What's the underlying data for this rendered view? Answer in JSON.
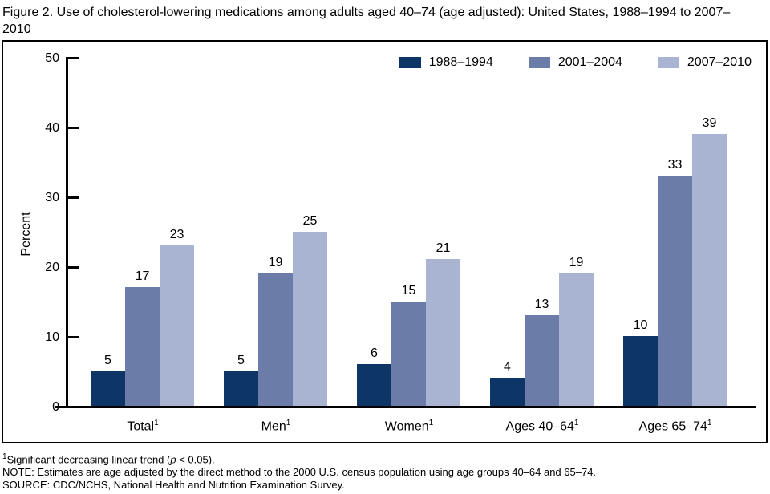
{
  "chart_data": {
    "type": "bar",
    "title": "Figure 2. Use of cholesterol-lowering medications among adults aged 40–74 (age adjusted): United States, 1988–1994 to 2007–2010",
    "xlabel": "",
    "ylabel": "Percent",
    "ylim": [
      0,
      50
    ],
    "yticks": [
      0,
      10,
      20,
      30,
      40,
      50
    ],
    "grid": false,
    "legend_position": "top-right",
    "categories": [
      "Total",
      "Men",
      "Women",
      "Ages 40–64",
      "Ages 65–74"
    ],
    "category_footnote_marker": "1",
    "series": [
      {
        "name": "1988–1994",
        "color": "#0d3666",
        "values": [
          5,
          5,
          6,
          4,
          10
        ]
      },
      {
        "name": "2001–2004",
        "color": "#6a7ca7",
        "values": [
          17,
          19,
          15,
          13,
          33
        ]
      },
      {
        "name": "2007–2010",
        "color": "#a9b3d2",
        "values": [
          23,
          25,
          21,
          19,
          39
        ]
      }
    ]
  },
  "colors": {
    "axis": "#000000",
    "text": "#000000",
    "background": "#ffffff"
  },
  "footnotes": {
    "line1_sup": "1",
    "line1_pre": "Significant decreasing linear trend (",
    "line1_italic": "p",
    "line1_post": " < 0.05).",
    "line2": "NOTE: Estimates are age adjusted by the direct method to the 2000 U.S. census population using age groups 40–64 and 65–74.",
    "line3": "SOURCE: CDC/NCHS, National Health and Nutrition Examination Survey."
  }
}
